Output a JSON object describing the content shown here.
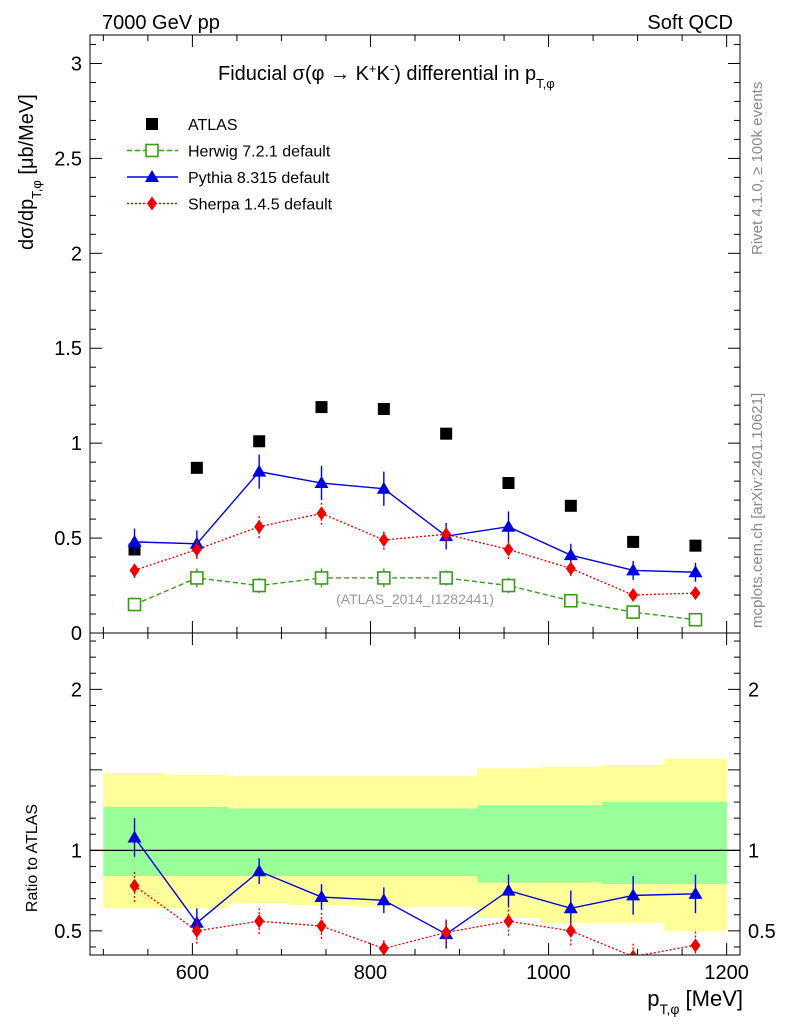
{
  "header": {
    "left": "7000 GeV pp",
    "right": "Soft QCD"
  },
  "side_labels": {
    "top": "Rivet 4.1.0, ≥ 100k events",
    "bottom": "mcplots.cern.ch [arXiv:2401.10621]"
  },
  "colors": {
    "atlas": "#000000",
    "herwig": "#3a9a1a",
    "pythia": "#0000dd",
    "sherpa": "#ee0000",
    "band_inner": "#99ff99",
    "band_outer": "#ffff99"
  },
  "chart_data": [
    {
      "type": "scatter",
      "title_parts": {
        "prefix": "Fiducial ",
        "sigma": "σ(φ →  K",
        "kplus": "+",
        "kmid": "K",
        "kminus": "-",
        "suffix": ") differential in p",
        "sub": "T,φ"
      },
      "ylabel_parts": {
        "main": "dσ/dp",
        "sub": "T,φ",
        "unit": " [μb/MeV]"
      },
      "xlim": [
        485,
        1215
      ],
      "ylim": [
        0,
        3.15
      ],
      "yticks": [
        "0",
        "0.5",
        "1",
        "1.5",
        "2",
        "2.5",
        "3"
      ],
      "ytick_values": [
        0,
        0.5,
        1,
        1.5,
        2,
        2.5,
        3
      ],
      "watermark": "(ATLAS_2014_I1282441)",
      "x": [
        535,
        605,
        675,
        745,
        815,
        885,
        955,
        1025,
        1095,
        1165
      ],
      "series": [
        {
          "name": "ATLAS",
          "key": "atlas",
          "marker": "square",
          "values": [
            0.44,
            0.87,
            1.01,
            1.19,
            1.18,
            1.05,
            0.79,
            0.67,
            0.48,
            0.46
          ],
          "errors": [
            0,
            0,
            0,
            0,
            0,
            0,
            0,
            0,
            0,
            0
          ]
        },
        {
          "name": "Herwig 7.2.1 default",
          "key": "herwig",
          "marker": "open-square",
          "values": [
            0.15,
            0.29,
            0.25,
            0.29,
            0.29,
            0.29,
            0.25,
            0.17,
            0.11,
            0.07
          ],
          "errors": [
            0.03,
            0.05,
            0.04,
            0.05,
            0.05,
            0.04,
            0.04,
            0.03,
            0.02,
            0.015
          ]
        },
        {
          "name": "Pythia 8.315 default",
          "key": "pythia",
          "marker": "triangle",
          "values": [
            0.48,
            0.47,
            0.85,
            0.79,
            0.76,
            0.51,
            0.56,
            0.41,
            0.33,
            0.32
          ],
          "errors": [
            0.07,
            0.07,
            0.09,
            0.09,
            0.09,
            0.07,
            0.08,
            0.06,
            0.05,
            0.05
          ]
        },
        {
          "name": "Sherpa 1.4.5 default",
          "key": "sherpa",
          "marker": "diamond",
          "values": [
            0.33,
            0.44,
            0.56,
            0.63,
            0.49,
            0.52,
            0.44,
            0.34,
            0.2,
            0.21
          ],
          "errors": [
            0.04,
            0.05,
            0.06,
            0.06,
            0.05,
            0.05,
            0.05,
            0.04,
            0.03,
            0.03
          ]
        }
      ]
    },
    {
      "type": "line",
      "ylabel": "Ratio to ATLAS",
      "xlabel_parts": {
        "main": "p",
        "sub": "T,φ",
        "unit": " [MeV]"
      },
      "xlim": [
        485,
        1215
      ],
      "ylim": [
        0.35,
        2.35
      ],
      "xticks": [
        "600",
        "800",
        "1000",
        "1200"
      ],
      "xtick_values": [
        600,
        800,
        1000,
        1200
      ],
      "yticks": [
        "0.5",
        "1",
        "2"
      ],
      "ytick_values": [
        0.5,
        1,
        2
      ],
      "bin_edges": [
        500,
        570,
        640,
        710,
        780,
        850,
        920,
        990,
        1060,
        1130,
        1200
      ],
      "band_inner": [
        [
          0.84,
          1.27
        ],
        [
          0.84,
          1.27
        ],
        [
          0.84,
          1.26
        ],
        [
          0.84,
          1.26
        ],
        [
          0.84,
          1.26
        ],
        [
          0.84,
          1.26
        ],
        [
          0.8,
          1.28
        ],
        [
          0.8,
          1.28
        ],
        [
          0.79,
          1.3
        ],
        [
          0.79,
          1.3
        ]
      ],
      "band_outer": [
        [
          0.64,
          1.48
        ],
        [
          0.64,
          1.47
        ],
        [
          0.67,
          1.46
        ],
        [
          0.66,
          1.46
        ],
        [
          0.65,
          1.46
        ],
        [
          0.65,
          1.46
        ],
        [
          0.58,
          1.51
        ],
        [
          0.55,
          1.52
        ],
        [
          0.55,
          1.53
        ],
        [
          0.5,
          1.57
        ]
      ],
      "x": [
        535,
        605,
        675,
        745,
        815,
        885,
        955,
        1025,
        1095,
        1165
      ],
      "series": [
        {
          "name": "Pythia 8.315 default",
          "key": "pythia",
          "marker": "triangle",
          "values": [
            1.08,
            0.55,
            0.87,
            0.71,
            0.69,
            0.48,
            0.75,
            0.64,
            0.72,
            0.73
          ],
          "errors": [
            0.12,
            0.09,
            0.08,
            0.08,
            0.08,
            0.09,
            0.1,
            0.11,
            0.12,
            0.12
          ]
        },
        {
          "name": "Sherpa 1.4.5 default",
          "key": "sherpa",
          "marker": "diamond",
          "values": [
            0.78,
            0.5,
            0.56,
            0.53,
            0.39,
            0.49,
            0.56,
            0.5,
            0.34,
            0.41
          ],
          "errors": [
            0.1,
            0.08,
            0.08,
            0.08,
            0.06,
            0.08,
            0.09,
            0.09,
            0.08,
            0.1
          ]
        }
      ]
    }
  ]
}
